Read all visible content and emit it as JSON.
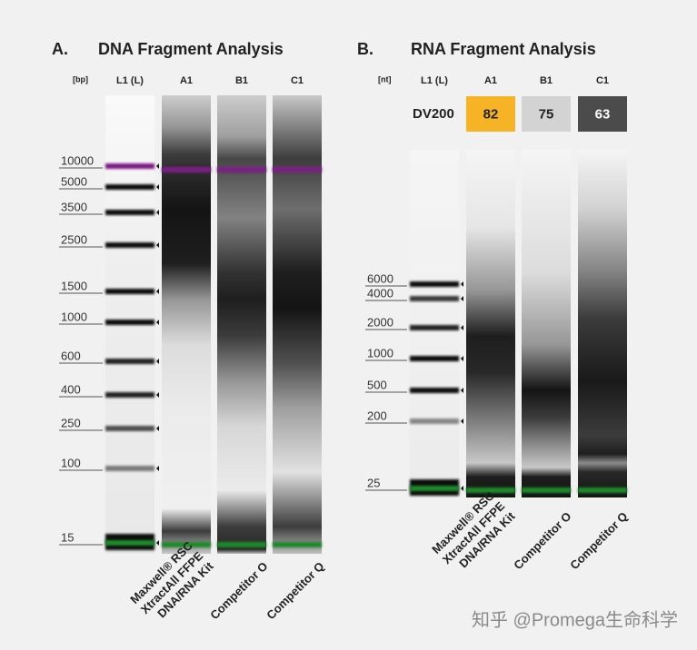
{
  "panels": [
    {
      "label": "A.",
      "title": "DNA Fragment Analysis",
      "unit": "[bp]",
      "lanes": [
        "L1 (L)",
        "A1",
        "B1",
        "C1"
      ],
      "ladder": [
        10000,
        5000,
        3500,
        2500,
        1500,
        1000,
        600,
        400,
        250,
        100,
        15
      ],
      "sample_names": [
        [
          "Maxwell® RSC",
          "XtractAll FFPE",
          "DNA/RNA Kit"
        ],
        [
          "Competitor O"
        ],
        [
          "Competitor Q"
        ]
      ]
    },
    {
      "label": "B.",
      "title": "RNA Fragment Analysis",
      "unit": "[nt]",
      "lanes": [
        "L1 (L)",
        "A1",
        "B1",
        "C1"
      ],
      "metric": "DV200",
      "metric_values": [
        82,
        75,
        63
      ],
      "ladder": [
        6000,
        4000,
        2000,
        1000,
        500,
        200,
        25
      ],
      "sample_names": [
        [
          "Maxwell® RSC",
          "XtractAll FFPE",
          "DNA/RNA Kit"
        ],
        [
          "Competitor O"
        ],
        [
          "Competitor Q"
        ]
      ]
    }
  ],
  "watermark": "知乎 @Promega生命科学"
}
